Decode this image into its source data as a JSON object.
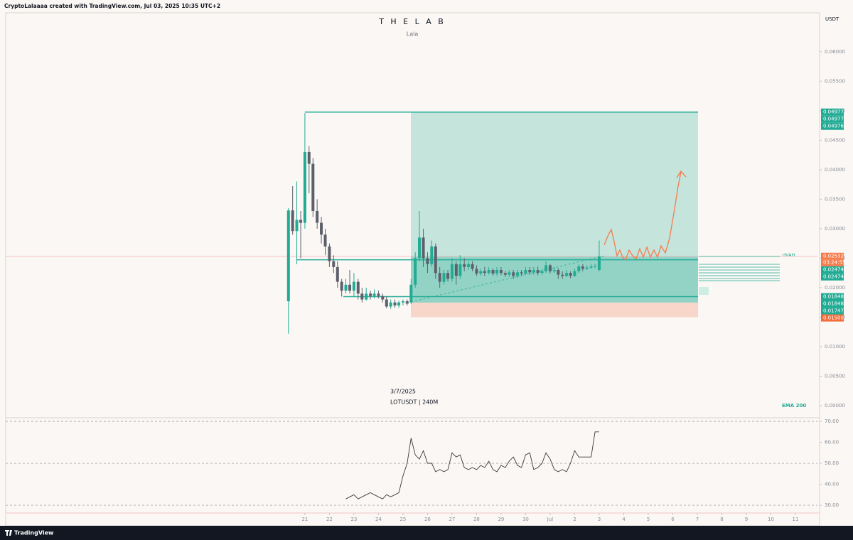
{
  "header": {
    "credit": "CryptoLalaaaa created with TradingView.com, Jul 03, 2025 10:35 UTC+2",
    "currency": "USDT"
  },
  "footer": {
    "brand": "TradingView"
  },
  "chart_data": [
    {
      "type": "candlestick",
      "title": "T H E  L A B",
      "subtitle": "Lala",
      "annotations": [
        "3/7/2025",
        "LOTUSDT | 240M"
      ],
      "indicator_label": "EMA 200",
      "profile_label": "dVAH",
      "up_color": "#22ab94",
      "down_color": "#5d606b",
      "x": [
        -0.67,
        -0.5,
        -0.33,
        -0.17,
        0,
        0.17,
        0.33,
        0.5,
        0.67,
        0.83,
        1,
        1.17,
        1.33,
        1.5,
        1.67,
        1.83,
        2,
        2.17,
        2.33,
        2.5,
        2.67,
        2.83,
        3,
        3.17,
        3.33,
        3.5,
        3.67,
        3.83,
        4,
        4.17,
        4.33,
        4.5,
        4.67,
        4.83,
        5,
        5.17,
        5.33,
        5.5,
        5.67,
        5.83,
        6,
        6.17,
        6.33,
        6.5,
        6.67,
        6.83,
        7,
        7.17,
        7.33,
        7.5,
        7.67,
        7.83,
        8,
        8.17,
        8.33,
        8.5,
        8.67,
        8.83,
        9,
        9.17,
        9.33,
        9.5,
        9.67,
        9.83,
        10,
        10.17,
        10.33,
        10.5,
        10.67,
        10.83,
        11,
        11.17,
        11.33,
        11.5,
        11.67,
        11.83,
        12
      ],
      "open": [
        0.0177,
        0.0331,
        0.0296,
        0.0315,
        0.031,
        0.043,
        0.041,
        0.033,
        0.031,
        0.029,
        0.027,
        0.0245,
        0.0235,
        0.021,
        0.0195,
        0.0205,
        0.0195,
        0.021,
        0.019,
        0.018,
        0.019,
        0.0186,
        0.019,
        0.0186,
        0.018,
        0.0168,
        0.0175,
        0.017,
        0.0175,
        0.0177,
        0.0175,
        0.0205,
        0.025,
        0.0285,
        0.025,
        0.024,
        0.027,
        0.0225,
        0.021,
        0.0225,
        0.0215,
        0.024,
        0.022,
        0.024,
        0.0235,
        0.024,
        0.0232,
        0.0224,
        0.0228,
        0.0225,
        0.023,
        0.0224,
        0.023,
        0.0225,
        0.0222,
        0.0226,
        0.022,
        0.0226,
        0.0224,
        0.023,
        0.0226,
        0.023,
        0.0225,
        0.0228,
        0.0238,
        0.0228,
        0.023,
        0.0222,
        0.022,
        0.0225,
        0.022,
        0.0228,
        0.0236,
        0.0232,
        0.0234,
        0.0236,
        0.023
      ],
      "high": [
        0.0335,
        0.0372,
        0.038,
        0.033,
        0.0496,
        0.044,
        0.042,
        0.035,
        0.032,
        0.03,
        0.0275,
        0.0255,
        0.0245,
        0.0215,
        0.0215,
        0.023,
        0.0225,
        0.0215,
        0.02,
        0.02,
        0.0195,
        0.0197,
        0.0195,
        0.019,
        0.0185,
        0.018,
        0.018,
        0.0178,
        0.018,
        0.018,
        0.0215,
        0.026,
        0.033,
        0.03,
        0.026,
        0.028,
        0.0275,
        0.0235,
        0.023,
        0.023,
        0.025,
        0.0245,
        0.0255,
        0.025,
        0.0245,
        0.0245,
        0.0238,
        0.0232,
        0.0235,
        0.0235,
        0.0233,
        0.0235,
        0.0235,
        0.0228,
        0.023,
        0.023,
        0.023,
        0.023,
        0.0235,
        0.0235,
        0.0235,
        0.0236,
        0.0232,
        0.0245,
        0.024,
        0.0235,
        0.0233,
        0.0228,
        0.023,
        0.0228,
        0.0232,
        0.024,
        0.024,
        0.0238,
        0.024,
        0.024,
        0.028
      ],
      "low": [
        0.0122,
        0.029,
        0.024,
        0.025,
        0.03,
        0.036,
        0.032,
        0.03,
        0.0275,
        0.0255,
        0.0235,
        0.0225,
        0.02,
        0.0185,
        0.019,
        0.019,
        0.0185,
        0.018,
        0.0175,
        0.0178,
        0.018,
        0.0182,
        0.0182,
        0.0175,
        0.0165,
        0.0164,
        0.0166,
        0.0166,
        0.017,
        0.017,
        0.0172,
        0.02,
        0.0245,
        0.0235,
        0.0225,
        0.0235,
        0.0215,
        0.02,
        0.0205,
        0.021,
        0.021,
        0.0205,
        0.0215,
        0.0228,
        0.023,
        0.0228,
        0.022,
        0.022,
        0.022,
        0.0222,
        0.022,
        0.022,
        0.0221,
        0.0218,
        0.0218,
        0.0215,
        0.0216,
        0.022,
        0.0222,
        0.0222,
        0.0222,
        0.0221,
        0.0222,
        0.0225,
        0.0224,
        0.0225,
        0.0215,
        0.0215,
        0.0218,
        0.0216,
        0.0218,
        0.0225,
        0.0228,
        0.023,
        0.0232,
        0.0233,
        0.0228
      ],
      "close": [
        0.0331,
        0.0296,
        0.0315,
        0.031,
        0.043,
        0.041,
        0.033,
        0.031,
        0.029,
        0.027,
        0.0245,
        0.0235,
        0.021,
        0.0195,
        0.0205,
        0.0195,
        0.021,
        0.019,
        0.018,
        0.019,
        0.0186,
        0.019,
        0.0186,
        0.018,
        0.0168,
        0.0175,
        0.017,
        0.0175,
        0.0177,
        0.0173,
        0.0205,
        0.025,
        0.0285,
        0.025,
        0.024,
        0.027,
        0.0225,
        0.021,
        0.0225,
        0.0215,
        0.024,
        0.022,
        0.024,
        0.0235,
        0.024,
        0.0232,
        0.0224,
        0.0228,
        0.0225,
        0.023,
        0.0224,
        0.023,
        0.0225,
        0.0222,
        0.0226,
        0.022,
        0.0226,
        0.0224,
        0.023,
        0.0226,
        0.023,
        0.0225,
        0.0228,
        0.0238,
        0.0228,
        0.023,
        0.0222,
        0.022,
        0.0225,
        0.022,
        0.0228,
        0.0236,
        0.0232,
        0.0234,
        0.0236,
        0.0237,
        0.0253
      ],
      "xlim": [
        -12.2,
        20.9
      ],
      "xticks": [
        {
          "value": 0,
          "label": "21"
        },
        {
          "value": 1,
          "label": "22"
        },
        {
          "value": 2,
          "label": "23"
        },
        {
          "value": 3,
          "label": "24"
        },
        {
          "value": 4,
          "label": "25"
        },
        {
          "value": 5,
          "label": "26"
        },
        {
          "value": 6,
          "label": "27"
        },
        {
          "value": 7,
          "label": "28"
        },
        {
          "value": 8,
          "label": "29"
        },
        {
          "value": 9,
          "label": "30"
        },
        {
          "value": 10,
          "label": "Jul"
        },
        {
          "value": 11,
          "label": "2"
        },
        {
          "value": 12,
          "label": "3"
        },
        {
          "value": 13,
          "label": "4"
        },
        {
          "value": 14,
          "label": "5"
        },
        {
          "value": 15,
          "label": "6"
        },
        {
          "value": 16,
          "label": "7"
        },
        {
          "value": 17,
          "label": "8"
        },
        {
          "value": 18,
          "label": "9"
        },
        {
          "value": 19,
          "label": "10"
        },
        {
          "value": 20,
          "label": "11"
        }
      ],
      "ylim": [
        -0.00205,
        0.0666
      ],
      "yticks": [
        {
          "value": 0,
          "label": "0.00000"
        },
        {
          "value": 0.005,
          "label": "0.00500"
        },
        {
          "value": 0.01,
          "label": "0.01000"
        },
        {
          "value": 0.015,
          "label": "0.01500"
        },
        {
          "value": 0.02,
          "label": "0.02000"
        },
        {
          "value": 0.025,
          "label": "0.02500"
        },
        {
          "value": 0.03,
          "label": "0.03000"
        },
        {
          "value": 0.035,
          "label": "0.03500"
        },
        {
          "value": 0.04,
          "label": "0.04000"
        },
        {
          "value": 0.045,
          "label": "0.04500"
        },
        {
          "value": 0.05,
          "label": "0.05000"
        },
        {
          "value": 0.055,
          "label": "0.05500"
        },
        {
          "value": 0.06,
          "label": "0.06000"
        }
      ],
      "price_labels": [
        {
          "value": 0.04977,
          "label": "0.04977",
          "color": "#22ab94"
        },
        {
          "value": 0.04977,
          "label": "0.04977",
          "color": "#22ab94"
        },
        {
          "value": 0.04976,
          "label": "0.04976",
          "color": "#22ab94"
        },
        {
          "value": 0.02532,
          "label": "0.02532",
          "color": "#f57c4c",
          "sublabel": "03:24:55"
        },
        {
          "value": 0.02474,
          "label": "0.02474",
          "color": "#22ab94"
        },
        {
          "value": 0.02474,
          "label": "0.02474",
          "color": "#22ab94"
        },
        {
          "value": 0.01848,
          "label": "0.01848",
          "color": "#22ab94"
        },
        {
          "value": 0.01848,
          "label": "0.01848",
          "color": "#22ab94"
        },
        {
          "value": 0.01747,
          "label": "0.01747",
          "color": "#22ab94"
        },
        {
          "value": 0.015,
          "label": "0.01500",
          "color": "#f26c3c"
        }
      ]
    },
    {
      "type": "line",
      "name": "RSI",
      "color": "#3a3a3a",
      "values": [
        null,
        null,
        null,
        null,
        null,
        null,
        null,
        null,
        null,
        null,
        null,
        null,
        null,
        null,
        33,
        34,
        35,
        33,
        34,
        35,
        36,
        35,
        34,
        33,
        35,
        34,
        35,
        36,
        44,
        50,
        62,
        54,
        52,
        56,
        50,
        50,
        46,
        47,
        46,
        47,
        55,
        53,
        54,
        48,
        47,
        48,
        47,
        49,
        48,
        51,
        47,
        46,
        49,
        48,
        51,
        53,
        49,
        48,
        54,
        55,
        47,
        48,
        50,
        55,
        52,
        47,
        46,
        47,
        46,
        50,
        56,
        53,
        53,
        53,
        53,
        65,
        65
      ],
      "ylim": [
        26.3,
        71.7
      ],
      "yticks": [
        {
          "value": 30,
          "label": "30.00"
        },
        {
          "value": 40,
          "label": "40.00"
        },
        {
          "value": 50,
          "label": "50.00"
        },
        {
          "value": 60,
          "label": "60.00"
        },
        {
          "value": 70,
          "label": "70.00"
        }
      ],
      "levels": [
        30,
        50,
        70
      ]
    }
  ]
}
